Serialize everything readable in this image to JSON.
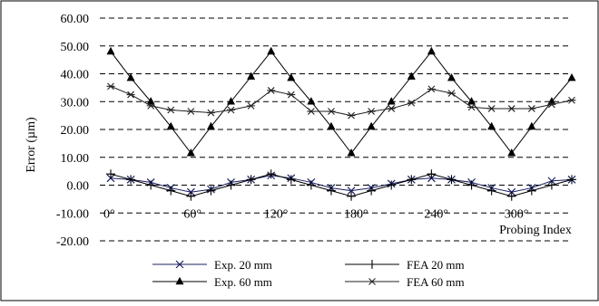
{
  "chart_data": {
    "type": "line",
    "title": "",
    "xlabel": "Probing Index",
    "ylabel": "Error (µm)",
    "ylim": [
      -20,
      60
    ],
    "yticks": [
      "-20.00",
      "-10.00",
      "0.00",
      "10.00",
      "20.00",
      "30.00",
      "40.00",
      "50.00",
      "60.00"
    ],
    "grid": "horizontal-dashed",
    "legend_position": "bottom",
    "x": [
      0,
      15,
      30,
      45,
      60,
      75,
      90,
      105,
      120,
      135,
      150,
      165,
      180,
      195,
      210,
      225,
      240,
      255,
      270,
      285,
      300,
      315,
      330,
      345
    ],
    "x_tick_labels": [
      {
        "x": 0,
        "label": "0°"
      },
      {
        "x": 60,
        "label": "60°"
      },
      {
        "x": 120,
        "label": "120°"
      },
      {
        "x": 180,
        "label": "180°"
      },
      {
        "x": 240,
        "label": "240°"
      },
      {
        "x": 300,
        "label": "300°"
      }
    ],
    "series": [
      {
        "name": "Exp. 20 mm",
        "marker": "x",
        "values": [
          2.5,
          2.0,
          1.0,
          -1.0,
          -2.5,
          -1.5,
          1.0,
          2.0,
          3.5,
          2.5,
          1.0,
          -1.0,
          -2.0,
          -1.0,
          0.5,
          2.0,
          2.5,
          2.0,
          1.0,
          -1.0,
          -2.5,
          -1.0,
          1.5,
          2.0
        ]
      },
      {
        "name": "FEA 20 mm",
        "marker": "plus",
        "values": [
          4.0,
          2.0,
          0.0,
          -2.0,
          -4.0,
          -2.0,
          0.0,
          2.0,
          4.0,
          2.0,
          0.0,
          -2.0,
          -4.0,
          -2.0,
          0.0,
          2.0,
          4.0,
          2.0,
          0.0,
          -2.0,
          -4.0,
          -2.0,
          0.0,
          2.0
        ]
      },
      {
        "name": "Exp. 60 mm",
        "marker": "triangle",
        "values": [
          48.0,
          38.5,
          30.0,
          21.0,
          11.5,
          21.0,
          30.0,
          39.0,
          48.0,
          38.5,
          30.0,
          21.0,
          11.5,
          21.0,
          30.0,
          39.0,
          48.0,
          38.5,
          30.0,
          21.0,
          11.5,
          21.0,
          30.0,
          38.5
        ]
      },
      {
        "name": "FEA 60 mm",
        "marker": "asterisk",
        "values": [
          35.5,
          32.5,
          28.5,
          27.0,
          26.5,
          26.0,
          27.0,
          28.5,
          34.0,
          32.5,
          26.5,
          26.5,
          25.0,
          26.5,
          27.5,
          29.5,
          34.5,
          33.0,
          28.0,
          27.5,
          27.5,
          27.5,
          29.0,
          30.5
        ]
      }
    ]
  }
}
